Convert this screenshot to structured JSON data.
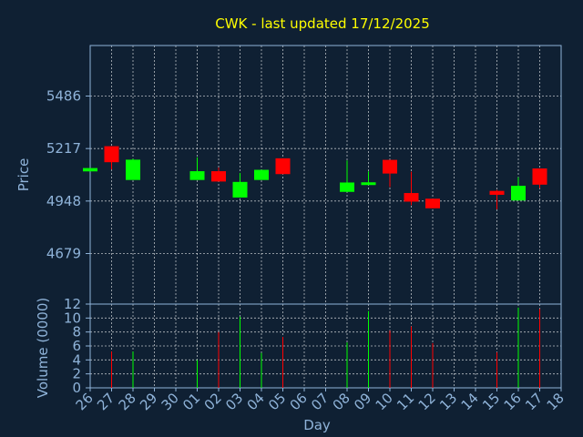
{
  "chart_data": {
    "type": "candlestick",
    "title": "CWK - last updated 17/12/2025",
    "xlabel": "Day",
    "ylabel": "Price",
    "volume_label": "Volume (0000)",
    "grid": true,
    "colors": {
      "background": "#0f2033",
      "axis": "#8fb3d9",
      "title": "#ffff00",
      "up": "#00ff00",
      "down": "#ff0000",
      "grid": "#ffffff"
    },
    "price_ticks": [
      4679,
      4948,
      5217,
      5486
    ],
    "price_range": [
      4420,
      5745
    ],
    "volume_ticks": [
      0,
      2,
      4,
      6,
      8,
      10,
      12
    ],
    "volume_range": [
      0,
      12
    ],
    "x_ticks": [
      "26",
      "27",
      "28",
      "29",
      "30",
      "01",
      "02",
      "03",
      "04",
      "05",
      "06",
      "07",
      "08",
      "09",
      "10",
      "11",
      "12",
      "13",
      "14",
      "15",
      "16",
      "17",
      "18"
    ],
    "candles": [
      {
        "day": "26",
        "open": 5100,
        "close": 5117,
        "high": 5117,
        "low": 5100,
        "volume": 0
      },
      {
        "day": "27",
        "open": 5229,
        "close": 5147,
        "high": 5229,
        "low": 5110,
        "volume": 5.2
      },
      {
        "day": "28",
        "open": 5056,
        "close": 5160,
        "high": 5165,
        "low": 5056,
        "volume": 5.2
      },
      {
        "day": "01",
        "open": 5056,
        "close": 5101,
        "high": 5172,
        "low": 5056,
        "volume": 4.0
      },
      {
        "day": "02",
        "open": 5101,
        "close": 5048,
        "high": 5120,
        "low": 5048,
        "volume": 8.0
      },
      {
        "day": "03",
        "open": 4966,
        "close": 5046,
        "high": 5092,
        "low": 4966,
        "volume": 10.2
      },
      {
        "day": "04",
        "open": 5056,
        "close": 5108,
        "high": 5108,
        "low": 5056,
        "volume": 5.0
      },
      {
        "day": "05",
        "open": 5167,
        "close": 5086,
        "high": 5167,
        "low": 5086,
        "volume": 7.3
      },
      {
        "day": "08",
        "open": 4995,
        "close": 5043,
        "high": 5156,
        "low": 4995,
        "volume": 6.5
      },
      {
        "day": "09",
        "open": 5034,
        "close": 5044,
        "high": 5100,
        "low": 5034,
        "volume": 11.0
      },
      {
        "day": "10",
        "open": 5159,
        "close": 5089,
        "high": 5159,
        "low": 5020,
        "volume": 8.2
      },
      {
        "day": "11",
        "open": 4989,
        "close": 4945,
        "high": 5098,
        "low": 4927,
        "volume": 8.8
      },
      {
        "day": "12",
        "open": 4960,
        "close": 4911,
        "high": 4960,
        "low": 4911,
        "volume": 6.4
      },
      {
        "day": "15",
        "open": 5000,
        "close": 4980,
        "high": 5005,
        "low": 4905,
        "volume": 5.1
      },
      {
        "day": "16",
        "open": 4951,
        "close": 5026,
        "high": 5070,
        "low": 4951,
        "volume": 11.5
      },
      {
        "day": "17",
        "open": 5115,
        "close": 5032,
        "high": 5115,
        "low": 5014,
        "volume": 11.3
      }
    ]
  }
}
